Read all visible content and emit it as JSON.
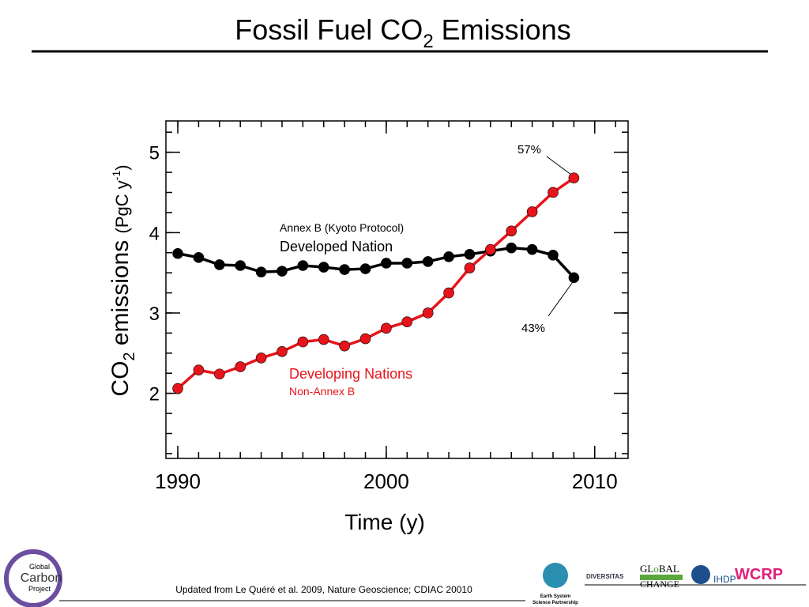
{
  "chart_data": {
    "type": "line",
    "title": "Fossil Fuel CO",
    "title_sub": "2",
    "title_end": " Emissions",
    "ylabel": "CO",
    "ylabel_sub": "2",
    "ylabel_mid": " emissions ",
    "ylabel_unit": "(PgC y",
    "ylabel_sup": "-1",
    "ylabel_end": ")",
    "xlabel": "Time (y)",
    "x": [
      1990,
      1991,
      1992,
      1993,
      1994,
      1995,
      1996,
      1997,
      1998,
      1999,
      2000,
      2001,
      2002,
      2003,
      2004,
      2005,
      2006,
      2007,
      2008,
      2009
    ],
    "series": [
      {
        "name": "Developed Nation",
        "color": "#000000",
        "values": [
          3.74,
          3.69,
          3.6,
          3.59,
          3.51,
          3.52,
          3.59,
          3.57,
          3.54,
          3.55,
          3.62,
          3.62,
          3.64,
          3.7,
          3.73,
          3.77,
          3.81,
          3.79,
          3.72,
          3.44
        ]
      },
      {
        "name": "Developing Nations",
        "color": "#e8141b",
        "values": [
          2.06,
          2.29,
          2.24,
          2.33,
          2.44,
          2.52,
          2.64,
          2.67,
          2.59,
          2.68,
          2.81,
          2.89,
          3.0,
          3.25,
          3.56,
          3.79,
          4.02,
          4.26,
          4.5,
          4.68
        ]
      }
    ],
    "series_subtitles": [
      "Annex B (Kyoto Protocol)",
      "Non-Annex B"
    ],
    "annotations": [
      "57%",
      "43%"
    ],
    "xlim": [
      1989.43,
      2011.6
    ],
    "xticks": [
      1990,
      2000,
      2010
    ],
    "ylim": [
      1.19,
      5.39
    ],
    "yticks": [
      2,
      3,
      4,
      5
    ]
  },
  "footer": {
    "source": "Updated from Le Quéré et al. 2009, Nature Geoscience; CDIAC 20010",
    "logos": [
      "Global",
      "Carbon",
      "Project",
      "Earth System",
      "Science Partnership",
      "DIVERSITAS",
      "GL",
      "BAL",
      "CHANGE",
      "IHDP",
      "WCRP"
    ]
  }
}
